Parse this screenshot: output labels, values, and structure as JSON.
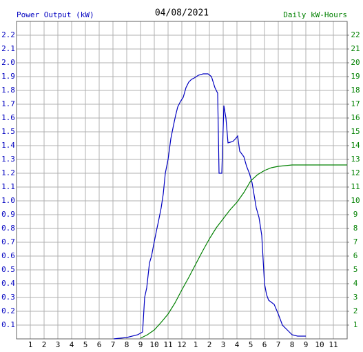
{
  "chart_data": {
    "type": "line",
    "title": "04/08/2021",
    "y_label": "Power Output (kW)",
    "y2_label": "Daily kW-Hours",
    "xlim": [
      0,
      24
    ],
    "xticks": [
      1,
      2,
      3,
      4,
      5,
      6,
      7,
      8,
      9,
      10,
      11,
      12,
      {
        "value": 13,
        "label": "1"
      },
      {
        "value": 14,
        "label": "2"
      },
      {
        "value": 15,
        "label": "3"
      },
      {
        "value": 16,
        "label": "4"
      },
      {
        "value": 17,
        "label": "5"
      },
      {
        "value": 18,
        "label": "6"
      },
      {
        "value": 19,
        "label": "7"
      },
      {
        "value": 20,
        "label": "8"
      },
      {
        "value": 21,
        "label": "9"
      },
      {
        "value": 22,
        "label": "10"
      },
      {
        "value": 23,
        "label": "11"
      }
    ],
    "ylim": [
      0,
      2.3
    ],
    "yticks": [
      0.1,
      0.2,
      0.3,
      0.4,
      0.5,
      0.6,
      0.7,
      0.8,
      0.9,
      {
        "value": 1,
        "label": "1.0"
      },
      1.1,
      1.2,
      1.3,
      1.4,
      1.5,
      1.6,
      1.7,
      1.8,
      1.9,
      {
        "value": 2,
        "label": "2.0"
      },
      2.1,
      2.2
    ],
    "y2lim": [
      0,
      23
    ],
    "y2ticks": [
      1,
      2,
      3,
      4,
      5,
      6,
      7,
      8,
      9,
      10,
      11,
      12,
      13,
      14,
      15,
      16,
      17,
      18,
      19,
      20,
      21,
      22
    ],
    "grid": true,
    "series": [
      {
        "name": "Power Output (kW)",
        "color": "#0000c0",
        "x": [
          7.05,
          8,
          8.8,
          9.15,
          9.3,
          9.45,
          9.65,
          9.8,
          9.95,
          10.15,
          10.3,
          10.5,
          10.65,
          10.8,
          11,
          11.2,
          11.4,
          11.55,
          11.7,
          11.9,
          12.1,
          12.3,
          12.5,
          12.7,
          12.9,
          13.2,
          13.55,
          13.9,
          14.15,
          14.4,
          14.6,
          14.7,
          14.9,
          15.05,
          15.2,
          15.35,
          15.7,
          15.9,
          16.05,
          16.2,
          16.5,
          16.7,
          16.9,
          17.1,
          17.4,
          17.6,
          17.8,
          18,
          18.15,
          18.3,
          18.7,
          19,
          19.3,
          19.6,
          20,
          20.4,
          21
        ],
        "values": [
          0,
          0.01,
          0.03,
          0.05,
          0.3,
          0.37,
          0.55,
          0.6,
          0.68,
          0.78,
          0.85,
          0.95,
          1.05,
          1.2,
          1.3,
          1.45,
          1.55,
          1.62,
          1.68,
          1.72,
          1.75,
          1.82,
          1.86,
          1.88,
          1.89,
          1.91,
          1.92,
          1.92,
          1.9,
          1.82,
          1.78,
          1.2,
          1.2,
          1.69,
          1.6,
          1.42,
          1.43,
          1.45,
          1.47,
          1.36,
          1.32,
          1.25,
          1.2,
          1.13,
          0.95,
          0.88,
          0.75,
          0.4,
          0.32,
          0.28,
          0.25,
          0.18,
          0.1,
          0.07,
          0.03,
          0.02,
          0.02
        ]
      },
      {
        "name": "Daily kW-Hours",
        "color": "#008000",
        "axis": "y2",
        "x": [
          9,
          9.5,
          10,
          10.5,
          11,
          11.5,
          12,
          12.5,
          13,
          13.5,
          14,
          14.5,
          15,
          15.5,
          16,
          16.5,
          17,
          17.5,
          18,
          18.5,
          19,
          19.5,
          20,
          24
        ],
        "values": [
          0.05,
          0.3,
          0.65,
          1.2,
          1.8,
          2.6,
          3.55,
          4.45,
          5.4,
          6.35,
          7.25,
          8.05,
          8.7,
          9.35,
          9.9,
          10.6,
          11.45,
          11.9,
          12.2,
          12.4,
          12.5,
          12.55,
          12.6,
          12.6
        ]
      }
    ]
  }
}
